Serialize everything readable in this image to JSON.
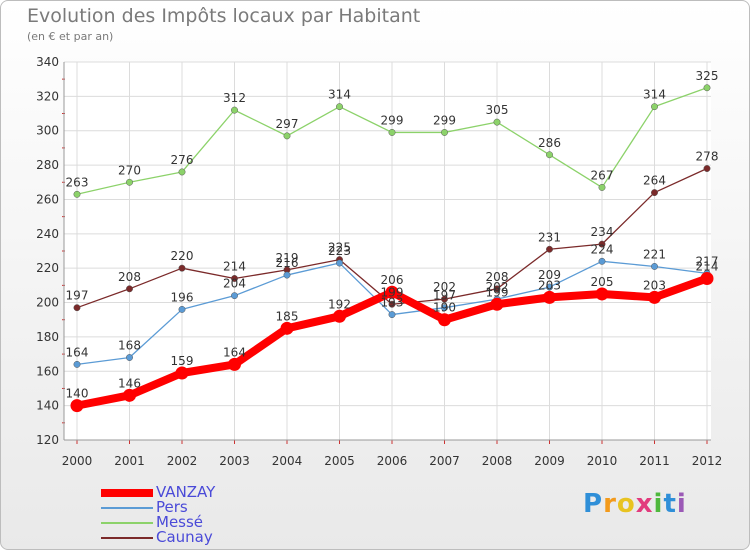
{
  "header": {
    "title": "Evolution des Impôts locaux par Habitant",
    "subtitle": "(en € et par an)"
  },
  "logo": {
    "letters": [
      "P",
      "r",
      "o",
      "x",
      "i",
      "t",
      "i"
    ],
    "colors": [
      "#2f8fd8",
      "#f39a1b",
      "#e8c321",
      "#e23b7d",
      "#4fb83d",
      "#2f8fd8",
      "#9b59b6"
    ]
  },
  "chart_data": {
    "type": "line",
    "title": "Evolution des Impôts locaux par Habitant",
    "subtitle": "(en € et par an)",
    "xlabel": "",
    "ylabel": "",
    "ylim": [
      120,
      340
    ],
    "yticks": [
      120,
      140,
      160,
      180,
      200,
      220,
      240,
      260,
      280,
      300,
      320,
      340
    ],
    "categories": [
      "2000",
      "2001",
      "2002",
      "2003",
      "2004",
      "2005",
      "2006",
      "2007",
      "2008",
      "2009",
      "2010",
      "2011",
      "2012"
    ],
    "grid": true,
    "series": [
      {
        "name": "VANZAY",
        "color": "#ff0000",
        "values": [
          140,
          146,
          159,
          164,
          185,
          192,
          206,
          190,
          199,
          203,
          205,
          203,
          214
        ]
      },
      {
        "name": "Pers",
        "color": "#5b9bd5",
        "values": [
          164,
          168,
          196,
          204,
          216,
          223,
          193,
          197,
          202,
          209,
          224,
          221,
          217
        ]
      },
      {
        "name": "Messé",
        "color": "#8cd26a",
        "values": [
          263,
          270,
          276,
          312,
          297,
          314,
          299,
          299,
          305,
          286,
          267,
          314,
          325
        ]
      },
      {
        "name": "Caunay",
        "color": "#7b2a2a",
        "values": [
          197,
          208,
          220,
          214,
          219,
          225,
          199,
          202,
          208,
          231,
          234,
          264,
          278
        ]
      }
    ]
  }
}
